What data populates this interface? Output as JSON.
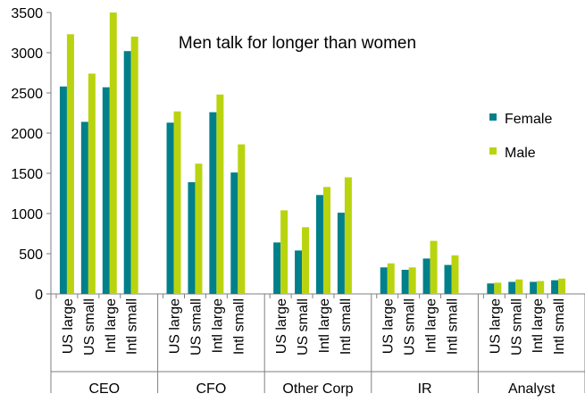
{
  "chart_data": {
    "type": "bar",
    "title": "Men talk for longer than women",
    "xlabel": "",
    "ylabel": "",
    "ylim": [
      0,
      3500
    ],
    "yticks": [
      0,
      500,
      1000,
      1500,
      2000,
      2500,
      3000,
      3500
    ],
    "grid": false,
    "legend_position": "right",
    "groups": [
      "CEO",
      "CFO",
      "Other Corp",
      "IR",
      "Analyst"
    ],
    "subcategories": [
      "US large",
      "US small",
      "Intl large",
      "Intl small"
    ],
    "series": [
      {
        "name": "Female",
        "color": "#00808a",
        "values": [
          2580,
          2140,
          2570,
          3020,
          2130,
          1390,
          2260,
          1510,
          640,
          540,
          1230,
          1010,
          330,
          300,
          440,
          360,
          130,
          150,
          150,
          170
        ]
      },
      {
        "name": "Male",
        "color": "#b9d40f",
        "values": [
          3230,
          2740,
          3500,
          3200,
          2270,
          1620,
          2480,
          1860,
          1040,
          830,
          1330,
          1450,
          380,
          330,
          660,
          480,
          140,
          180,
          160,
          190
        ]
      }
    ]
  }
}
